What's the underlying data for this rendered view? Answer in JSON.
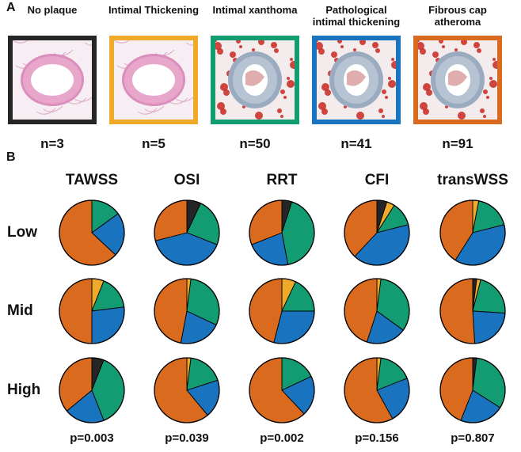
{
  "panels": {
    "a": "A",
    "b": "B"
  },
  "colors": {
    "no_plaque": "#262626",
    "intimal_thickening": "#F0AA2A",
    "intimal_xanthoma": "#139B72",
    "pathological_intimal_thickening": "#1A73BE",
    "fibrous_cap_atheroma": "#D96A1E"
  },
  "histology": [
    {
      "title": "No plaque",
      "n": "n=3",
      "color_key": "no_plaque",
      "stain": "he"
    },
    {
      "title": "Intimal Thickening",
      "n": "n=5",
      "color_key": "intimal_thickening",
      "stain": "he"
    },
    {
      "title": "Intimal xanthoma",
      "n": "n=50",
      "color_key": "intimal_xanthoma",
      "stain": "oro"
    },
    {
      "title": "Pathological intimal thickening",
      "n": "n=41",
      "color_key": "pathological_intimal_thickening",
      "stain": "oro"
    },
    {
      "title": "Fibrous cap atheroma",
      "n": "n=91",
      "color_key": "fibrous_cap_atheroma",
      "stain": "oro"
    }
  ],
  "chart_data": {
    "type": "pie",
    "slice_order": [
      "no_plaque",
      "intimal_thickening",
      "intimal_xanthoma",
      "pathological_intimal_thickening",
      "fibrous_cap_atheroma"
    ],
    "metrics": [
      "TAWSS",
      "OSI",
      "RRT",
      "CFI",
      "transWSS"
    ],
    "levels": [
      "Low",
      "Mid",
      "High"
    ],
    "p_values": [
      "p=0.003",
      "p=0.039",
      "p=0.002",
      "p=0.156",
      "p=0.807"
    ],
    "proportions": {
      "TAWSS": {
        "Low": [
          0,
          0,
          0.15,
          0.22,
          0.63
        ],
        "Mid": [
          0,
          0.06,
          0.17,
          0.27,
          0.5
        ],
        "High": [
          0.06,
          0,
          0.38,
          0.2,
          0.36
        ]
      },
      "OSI": {
        "Low": [
          0.07,
          0,
          0.24,
          0.4,
          0.29
        ],
        "Mid": [
          0,
          0.02,
          0.3,
          0.21,
          0.47
        ],
        "High": [
          0,
          0.02,
          0.18,
          0.19,
          0.61
        ]
      },
      "RRT": {
        "Low": [
          0.05,
          0,
          0.42,
          0.22,
          0.31
        ],
        "Mid": [
          0,
          0.07,
          0.18,
          0.29,
          0.46
        ],
        "High": [
          0,
          0,
          0.18,
          0.2,
          0.62
        ]
      },
      "CFI": {
        "Low": [
          0.05,
          0.04,
          0.12,
          0.41,
          0.38
        ],
        "Mid": [
          0,
          0.02,
          0.33,
          0.2,
          0.45
        ],
        "High": [
          0,
          0.02,
          0.17,
          0.23,
          0.58
        ]
      },
      "transWSS": {
        "Low": [
          0,
          0.03,
          0.18,
          0.38,
          0.41
        ],
        "Mid": [
          0.02,
          0.02,
          0.22,
          0.23,
          0.51
        ],
        "High": [
          0.02,
          0,
          0.32,
          0.22,
          0.44
        ]
      }
    }
  }
}
